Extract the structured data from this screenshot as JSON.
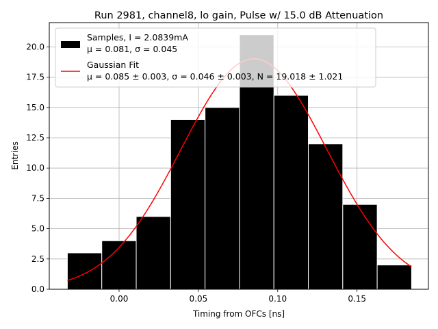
{
  "chart_data": {
    "type": "bar",
    "title": "Run 2981, channel8, lo gain, Pulse w/ 15.0 dB Attenuation",
    "xlabel": "Timing from OFCs [ns]",
    "ylabel": "Entries",
    "xlim": [
      -0.044,
      0.195
    ],
    "ylim": [
      0,
      22
    ],
    "xticks": [
      0.0,
      0.05,
      0.1,
      0.15
    ],
    "xtick_labels": [
      "0.00",
      "0.05",
      "0.10",
      "0.15"
    ],
    "yticks": [
      0,
      2.5,
      5,
      7.5,
      10,
      12.5,
      15,
      17.5,
      20
    ],
    "ytick_labels": [
      "0.0",
      "2.5",
      "5.0",
      "7.5",
      "10.0",
      "12.5",
      "15.0",
      "17.5",
      "20.0"
    ],
    "grid": true,
    "legend_position": "top-left",
    "bin_edges": [
      -0.0326,
      -0.0109,
      0.0108,
      0.0325,
      0.0542,
      0.0759,
      0.0976,
      0.1193,
      0.141,
      0.1627,
      0.1844
    ],
    "values": [
      3,
      4,
      6,
      14,
      15,
      21,
      16,
      12,
      7,
      2
    ],
    "series": [
      {
        "name": "Samples, I = 2.0839mA",
        "name_line2": "μ = 0.081, σ = 0.045",
        "type": "histogram",
        "color": "#000000"
      },
      {
        "name": "Gaussian Fit",
        "name_line2": "μ = 0.085 ± 0.003, σ = 0.046 ± 0.003, N = 19.018 ± 1.021",
        "type": "line",
        "color": "#ff0000"
      }
    ],
    "fit": {
      "mu": 0.085,
      "sigma": 0.046,
      "N": 19.018,
      "x_range": [
        -0.0326,
        0.1844
      ]
    }
  }
}
